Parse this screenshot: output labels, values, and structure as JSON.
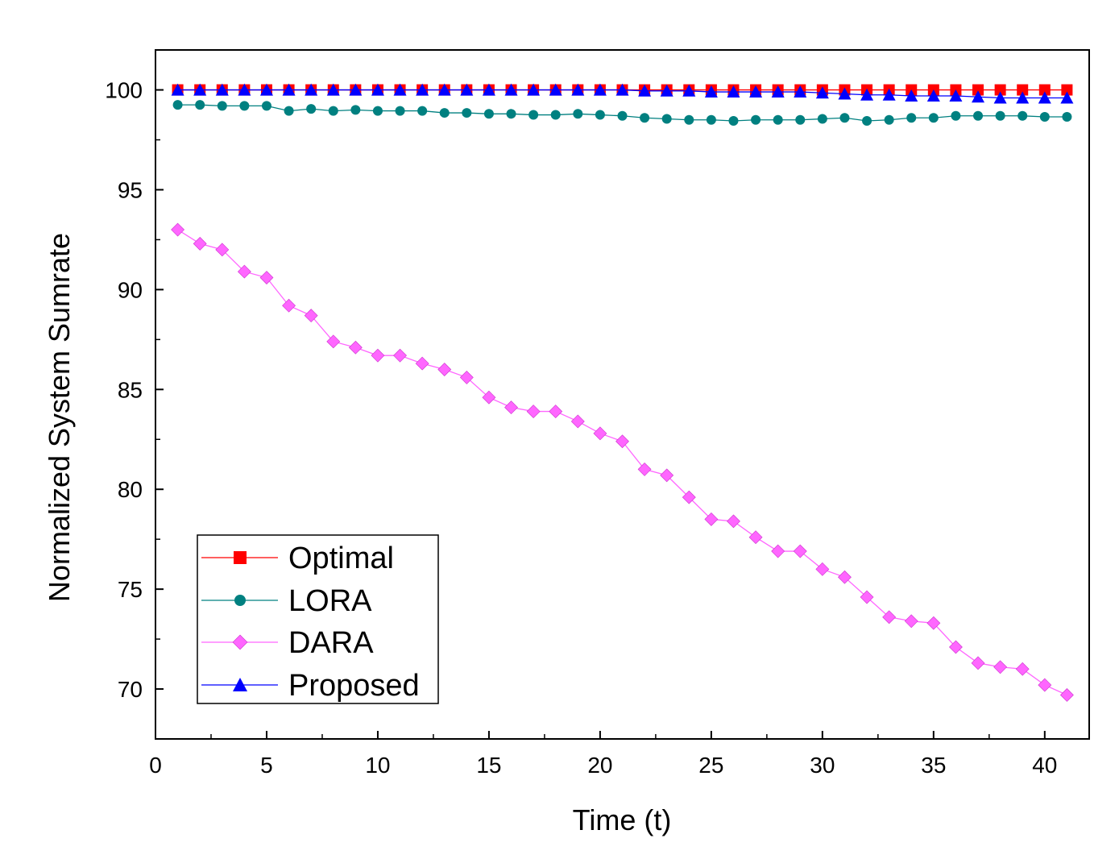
{
  "chart_data": {
    "type": "line",
    "title": "",
    "xlabel": "Time (t)",
    "ylabel": "Normalized System Sumrate",
    "xlim": [
      0,
      42
    ],
    "ylim": [
      67.5,
      102
    ],
    "xticks": [
      0,
      5,
      10,
      15,
      20,
      25,
      30,
      35,
      40
    ],
    "yticks": [
      70,
      75,
      80,
      85,
      90,
      95,
      100
    ],
    "xtick_labels": [
      "0",
      "5",
      "10",
      "15",
      "20",
      "25",
      "30",
      "35",
      "40"
    ],
    "ytick_labels": [
      "70",
      "75",
      "80",
      "85",
      "90",
      "95",
      "100"
    ],
    "grid": false,
    "legend_position": "bottom-left",
    "x": [
      1,
      2,
      3,
      4,
      5,
      6,
      7,
      8,
      9,
      10,
      11,
      12,
      13,
      14,
      15,
      16,
      17,
      18,
      19,
      20,
      21,
      22,
      23,
      24,
      25,
      26,
      27,
      28,
      29,
      30,
      31,
      32,
      33,
      34,
      35,
      36,
      37,
      38,
      39,
      40,
      41
    ],
    "series": [
      {
        "name": "Optimal",
        "color": "#ff0000",
        "marker": "square",
        "values": [
          100,
          100,
          100,
          100,
          100,
          100,
          100,
          100,
          100,
          100,
          100,
          100,
          100,
          100,
          100,
          100,
          100,
          100,
          100,
          100,
          100,
          100,
          100,
          100,
          100,
          100,
          100,
          100,
          100,
          100,
          100,
          100,
          100,
          100,
          100,
          100,
          100,
          100,
          100,
          100,
          100
        ]
      },
      {
        "name": "LORA",
        "color": "#008080",
        "marker": "circle",
        "values": [
          99.25,
          99.25,
          99.2,
          99.2,
          99.2,
          98.95,
          99.05,
          98.95,
          99.0,
          98.95,
          98.95,
          98.95,
          98.85,
          98.85,
          98.8,
          98.8,
          98.75,
          98.75,
          98.8,
          98.75,
          98.7,
          98.6,
          98.55,
          98.5,
          98.5,
          98.45,
          98.5,
          98.5,
          98.5,
          98.55,
          98.6,
          98.45,
          98.5,
          98.6,
          98.6,
          98.7,
          98.7,
          98.7,
          98.7,
          98.65,
          98.65
        ]
      },
      {
        "name": "DARA",
        "color": "#ff66ff",
        "marker": "diamond",
        "values": [
          93.0,
          92.3,
          92.0,
          90.9,
          90.6,
          89.2,
          88.7,
          87.4,
          87.1,
          86.7,
          86.7,
          86.3,
          86.0,
          85.6,
          84.6,
          84.1,
          83.9,
          83.9,
          83.4,
          82.8,
          82.4,
          81.0,
          80.7,
          79.6,
          78.5,
          78.4,
          77.6,
          76.9,
          76.9,
          76.0,
          75.6,
          74.6,
          73.6,
          73.4,
          73.3,
          72.1,
          71.3,
          71.1,
          71.0,
          70.2,
          69.7
        ]
      },
      {
        "name": "Proposed",
        "color": "#0000ff",
        "marker": "triangle",
        "values": [
          100,
          100,
          100,
          100,
          100,
          100,
          100,
          100,
          100,
          100,
          100,
          100,
          100,
          100,
          100,
          100,
          100,
          100,
          100,
          100,
          100,
          99.95,
          99.95,
          99.95,
          99.9,
          99.9,
          99.9,
          99.9,
          99.9,
          99.85,
          99.8,
          99.75,
          99.75,
          99.7,
          99.7,
          99.7,
          99.65,
          99.6,
          99.6,
          99.6,
          99.6
        ]
      }
    ]
  }
}
